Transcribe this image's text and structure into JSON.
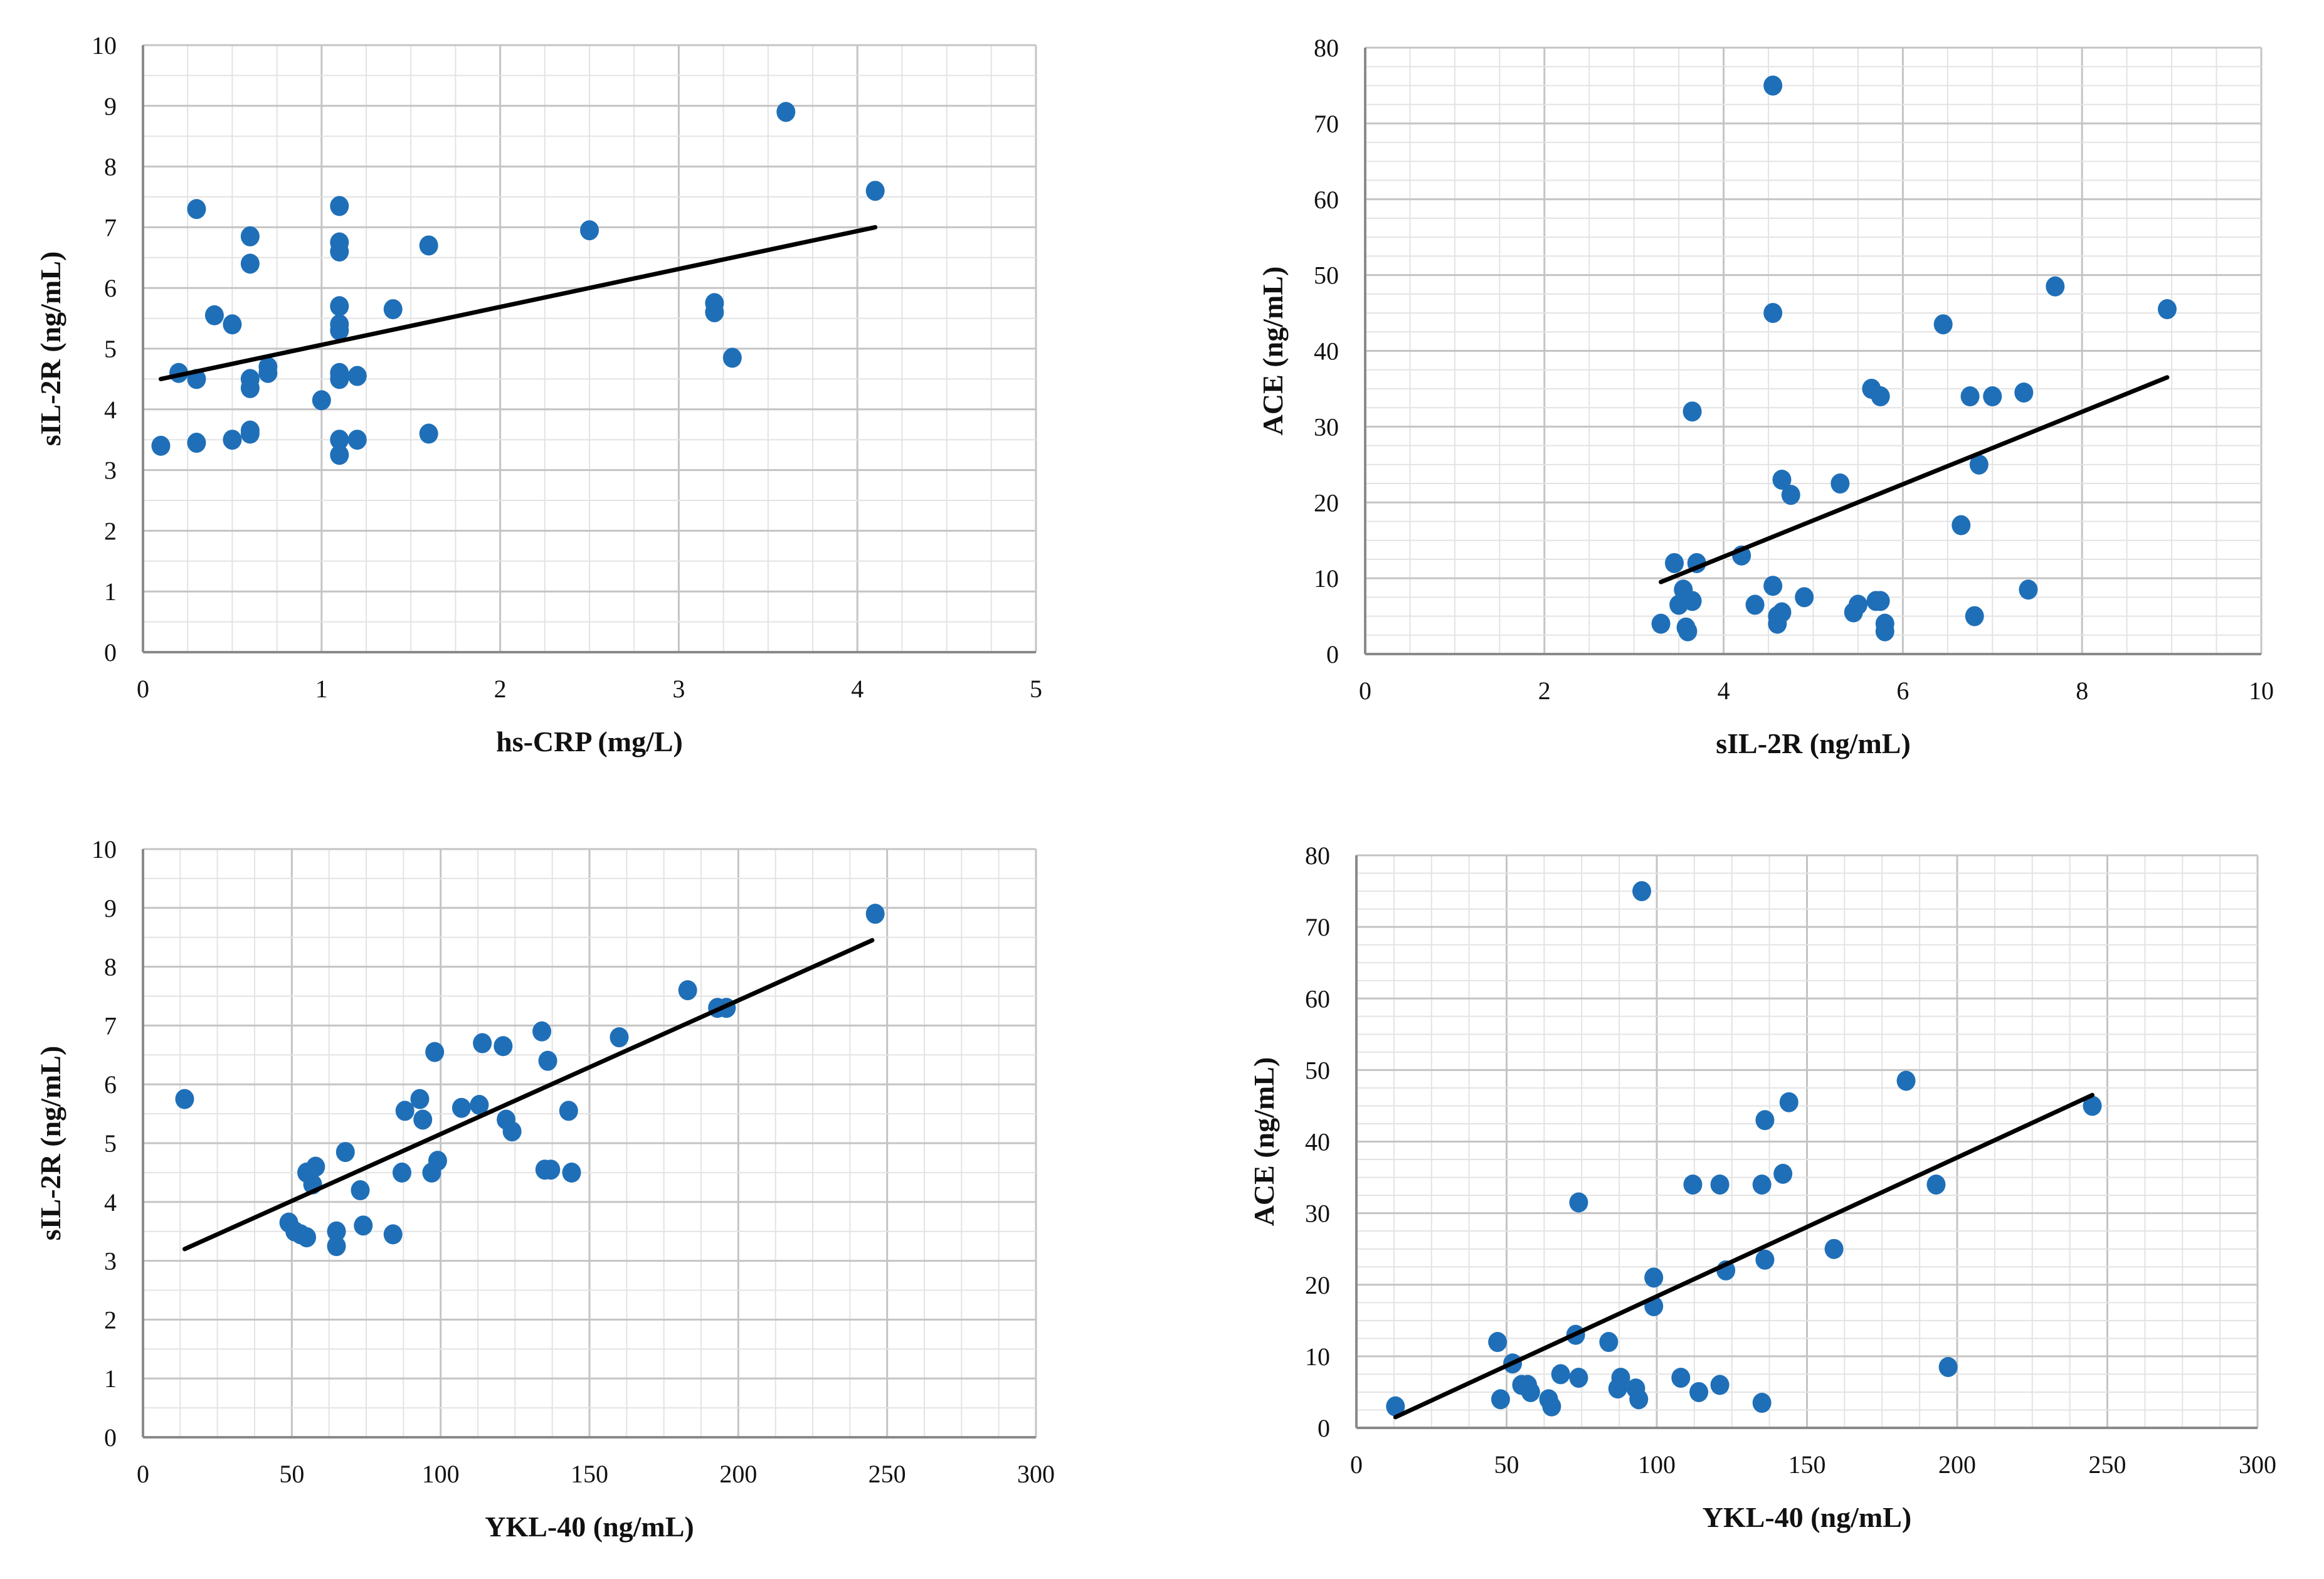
{
  "chart_data": [
    {
      "type": "scatter",
      "title": "",
      "xlabel": "hs-CRP (mg/L)",
      "ylabel": "sIL-2R (ng/mL)",
      "xlim": [
        0,
        5
      ],
      "ylim": [
        0,
        10
      ],
      "xticks": [
        0,
        1,
        2,
        3,
        4,
        5
      ],
      "yticks": [
        0,
        1,
        2,
        3,
        4,
        5,
        6,
        7,
        8,
        9,
        10
      ],
      "x_minor_step": 0.25,
      "y_minor_step": 0.5,
      "trendline": [
        [
          0.1,
          4.5
        ],
        [
          4.1,
          7.0
        ]
      ],
      "points": [
        [
          0.1,
          3.4
        ],
        [
          0.2,
          4.6
        ],
        [
          0.3,
          7.3
        ],
        [
          0.3,
          4.5
        ],
        [
          0.3,
          3.45
        ],
        [
          0.4,
          5.55
        ],
        [
          0.5,
          5.4
        ],
        [
          0.5,
          3.5
        ],
        [
          0.6,
          6.85
        ],
        [
          0.6,
          6.4
        ],
        [
          0.6,
          4.5
        ],
        [
          0.6,
          4.35
        ],
        [
          0.6,
          3.65
        ],
        [
          0.6,
          3.6
        ],
        [
          0.7,
          4.7
        ],
        [
          0.7,
          4.6
        ],
        [
          1.0,
          4.15
        ],
        [
          1.1,
          7.35
        ],
        [
          1.1,
          6.75
        ],
        [
          1.1,
          6.6
        ],
        [
          1.1,
          5.7
        ],
        [
          1.1,
          5.4
        ],
        [
          1.1,
          5.3
        ],
        [
          1.1,
          4.6
        ],
        [
          1.1,
          4.5
        ],
        [
          1.1,
          3.5
        ],
        [
          1.1,
          3.25
        ],
        [
          1.2,
          4.55
        ],
        [
          1.2,
          3.5
        ],
        [
          1.4,
          5.65
        ],
        [
          1.6,
          6.7
        ],
        [
          1.6,
          3.6
        ],
        [
          2.5,
          6.95
        ],
        [
          3.2,
          5.75
        ],
        [
          3.2,
          5.6
        ],
        [
          3.3,
          4.85
        ],
        [
          3.6,
          8.9
        ],
        [
          4.1,
          7.6
        ]
      ]
    },
    {
      "type": "scatter",
      "title": "",
      "xlabel": "sIL-2R (ng/mL)",
      "ylabel": "ACE (ng/mL)",
      "xlim": [
        0,
        10
      ],
      "ylim": [
        0,
        80
      ],
      "xticks": [
        0,
        2,
        4,
        6,
        8,
        10
      ],
      "yticks": [
        0,
        10,
        20,
        30,
        40,
        50,
        60,
        70,
        80
      ],
      "x_minor_step": 0.5,
      "y_minor_step": 2.5,
      "trendline": [
        [
          3.3,
          9.5
        ],
        [
          8.95,
          36.5
        ]
      ],
      "points": [
        [
          3.3,
          4
        ],
        [
          3.45,
          12
        ],
        [
          3.5,
          6.5
        ],
        [
          3.55,
          8.5
        ],
        [
          3.58,
          3.5
        ],
        [
          3.6,
          3
        ],
        [
          3.65,
          7
        ],
        [
          3.65,
          32
        ],
        [
          3.7,
          12
        ],
        [
          4.2,
          13
        ],
        [
          4.35,
          6.5
        ],
        [
          4.55,
          75
        ],
        [
          4.55,
          45
        ],
        [
          4.55,
          9
        ],
        [
          4.6,
          5
        ],
        [
          4.6,
          4
        ],
        [
          4.65,
          23
        ],
        [
          4.65,
          5.5
        ],
        [
          4.75,
          21
        ],
        [
          4.9,
          7.5
        ],
        [
          5.3,
          22.5
        ],
        [
          5.45,
          5.5
        ],
        [
          5.5,
          6.5
        ],
        [
          5.65,
          35
        ],
        [
          5.7,
          7
        ],
        [
          5.75,
          34
        ],
        [
          5.75,
          7
        ],
        [
          5.8,
          4
        ],
        [
          5.8,
          3
        ],
        [
          6.45,
          43.5
        ],
        [
          6.65,
          17
        ],
        [
          6.75,
          34
        ],
        [
          6.8,
          5
        ],
        [
          6.85,
          25
        ],
        [
          7.0,
          34
        ],
        [
          7.35,
          34.5
        ],
        [
          7.4,
          8.5
        ],
        [
          7.7,
          48.5
        ],
        [
          8.95,
          45.5
        ]
      ]
    },
    {
      "type": "scatter",
      "title": "",
      "xlabel": "YKL-40 (ng/mL)",
      "ylabel": "sIL-2R (ng/mL)",
      "xlim": [
        0,
        300
      ],
      "ylim": [
        0,
        10
      ],
      "xticks": [
        0,
        50,
        100,
        150,
        200,
        250,
        300
      ],
      "yticks": [
        0,
        1,
        2,
        3,
        4,
        5,
        6,
        7,
        8,
        9,
        10
      ],
      "x_minor_step": 12.5,
      "y_minor_step": 0.5,
      "trendline": [
        [
          14,
          3.2
        ],
        [
          245,
          8.45
        ]
      ],
      "points": [
        [
          14,
          5.75
        ],
        [
          49,
          3.65
        ],
        [
          51,
          3.5
        ],
        [
          53,
          3.45
        ],
        [
          55,
          3.4
        ],
        [
          55,
          4.5
        ],
        [
          57,
          4.3
        ],
        [
          58,
          4.6
        ],
        [
          65,
          3.5
        ],
        [
          65,
          3.25
        ],
        [
          68,
          4.85
        ],
        [
          73,
          4.2
        ],
        [
          74,
          3.6
        ],
        [
          84,
          3.45
        ],
        [
          87,
          4.5
        ],
        [
          88,
          5.55
        ],
        [
          93,
          5.75
        ],
        [
          94,
          5.4
        ],
        [
          97,
          4.5
        ],
        [
          98,
          6.55
        ],
        [
          99,
          4.7
        ],
        [
          107,
          5.6
        ],
        [
          113,
          5.65
        ],
        [
          114,
          6.7
        ],
        [
          121,
          6.65
        ],
        [
          122,
          5.4
        ],
        [
          124,
          5.2
        ],
        [
          134,
          6.9
        ],
        [
          135,
          4.55
        ],
        [
          136,
          6.4
        ],
        [
          137,
          4.55
        ],
        [
          143,
          5.55
        ],
        [
          144,
          4.5
        ],
        [
          160,
          6.8
        ],
        [
          183,
          7.6
        ],
        [
          193,
          7.3
        ],
        [
          196,
          7.3
        ],
        [
          246,
          8.9
        ]
      ]
    },
    {
      "type": "scatter",
      "title": "",
      "xlabel": "YKL-40 (ng/mL)",
      "ylabel": "ACE (ng/mL)",
      "xlim": [
        0,
        300
      ],
      "ylim": [
        0,
        80
      ],
      "xticks": [
        0,
        50,
        100,
        150,
        200,
        250,
        300
      ],
      "yticks": [
        0,
        10,
        20,
        30,
        40,
        50,
        60,
        70,
        80
      ],
      "x_minor_step": 12.5,
      "y_minor_step": 2.5,
      "trendline": [
        [
          13,
          1.5
        ],
        [
          245,
          46.5
        ]
      ],
      "points": [
        [
          13,
          3
        ],
        [
          47,
          12
        ],
        [
          48,
          4
        ],
        [
          52,
          9
        ],
        [
          55,
          6
        ],
        [
          57,
          6
        ],
        [
          58,
          5
        ],
        [
          64,
          4
        ],
        [
          65,
          3
        ],
        [
          68,
          7.5
        ],
        [
          73,
          13
        ],
        [
          74,
          31.5
        ],
        [
          74,
          7
        ],
        [
          84,
          12
        ],
        [
          87,
          5.5
        ],
        [
          88,
          7
        ],
        [
          93,
          5.5
        ],
        [
          94,
          4
        ],
        [
          95,
          75
        ],
        [
          99,
          21
        ],
        [
          99,
          17
        ],
        [
          108,
          7
        ],
        [
          112,
          34
        ],
        [
          114,
          5
        ],
        [
          121,
          34
        ],
        [
          121,
          6
        ],
        [
          123,
          22
        ],
        [
          135,
          34
        ],
        [
          135,
          3.5
        ],
        [
          136,
          23.5
        ],
        [
          136,
          43
        ],
        [
          142,
          35.5
        ],
        [
          144,
          45.5
        ],
        [
          159,
          25
        ],
        [
          183,
          48.5
        ],
        [
          193,
          34
        ],
        [
          197,
          8.5
        ],
        [
          245,
          45
        ]
      ]
    }
  ],
  "colors": {
    "point": "#1f6fb8",
    "trendline": "#000000",
    "grid": "#d0d0d0",
    "axis": "#8a8a8a",
    "text": "#111111"
  }
}
